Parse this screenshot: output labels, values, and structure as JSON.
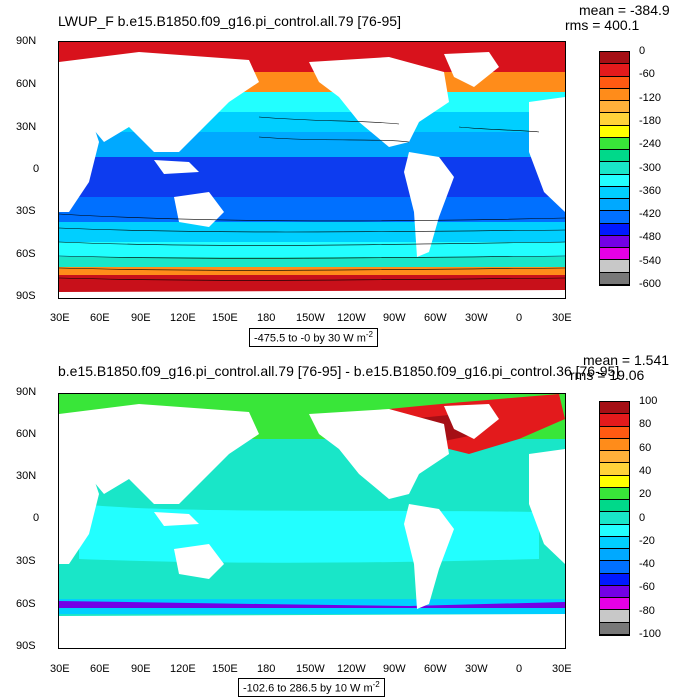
{
  "top": {
    "title": "LWUP_F b.e15.B1850.f09_g16.pi_control.all.79 [76-95]",
    "mean": "mean = -384.9",
    "rms": "rms = 400.1",
    "range_label": "-475.5 to -0 by 30  W m",
    "range_exp": "-2",
    "colorbar": {
      "colors": [
        "#a50f15",
        "#e31a1c",
        "#ff5a12",
        "#ff8c1a",
        "#ffb13a",
        "#ffd23a",
        "#ffff00",
        "#39e639",
        "#00d98a",
        "#19e6c8",
        "#22ffff",
        "#00cfff",
        "#00a9ff",
        "#0070ff",
        "#0019ff",
        "#7300e6",
        "#e600e6",
        "#c8c8c8",
        "#787878"
      ],
      "labels": [
        "0",
        "-60",
        "-120",
        "-180",
        "-240",
        "-300",
        "-360",
        "-420",
        "-480",
        "-540",
        "-600"
      ]
    }
  },
  "bottom": {
    "title": "b.e15.B1850.f09_g16.pi_control.all.79 [76-95] - b.e15.B1850.f09_g16.pi_control.36 [76-95]",
    "mean": "mean = 1.541",
    "rms": "rms = 19.06",
    "range_label": "-102.6 to 286.5 by 10  W m",
    "range_exp": "-2",
    "colorbar": {
      "colors": [
        "#a50f15",
        "#e31a1c",
        "#ff5a12",
        "#ff8c1a",
        "#ffb13a",
        "#ffd23a",
        "#ffff00",
        "#39e639",
        "#00d98a",
        "#19e6c8",
        "#22ffff",
        "#00cfff",
        "#00a9ff",
        "#0070ff",
        "#0019ff",
        "#7300e6",
        "#e600e6",
        "#c8c8c8",
        "#787878"
      ],
      "labels": [
        "100",
        "80",
        "60",
        "40",
        "20",
        "0",
        "-20",
        "-40",
        "-60",
        "-80",
        "-100"
      ]
    }
  },
  "axes": {
    "lat_labels": [
      "90N",
      "60N",
      "30N",
      "0",
      "30S",
      "60S",
      "90S"
    ],
    "lon_labels": [
      "30E",
      "60E",
      "90E",
      "120E",
      "150E",
      "180",
      "150W",
      "120W",
      "90W",
      "60W",
      "30W",
      "0",
      "30E"
    ]
  }
}
